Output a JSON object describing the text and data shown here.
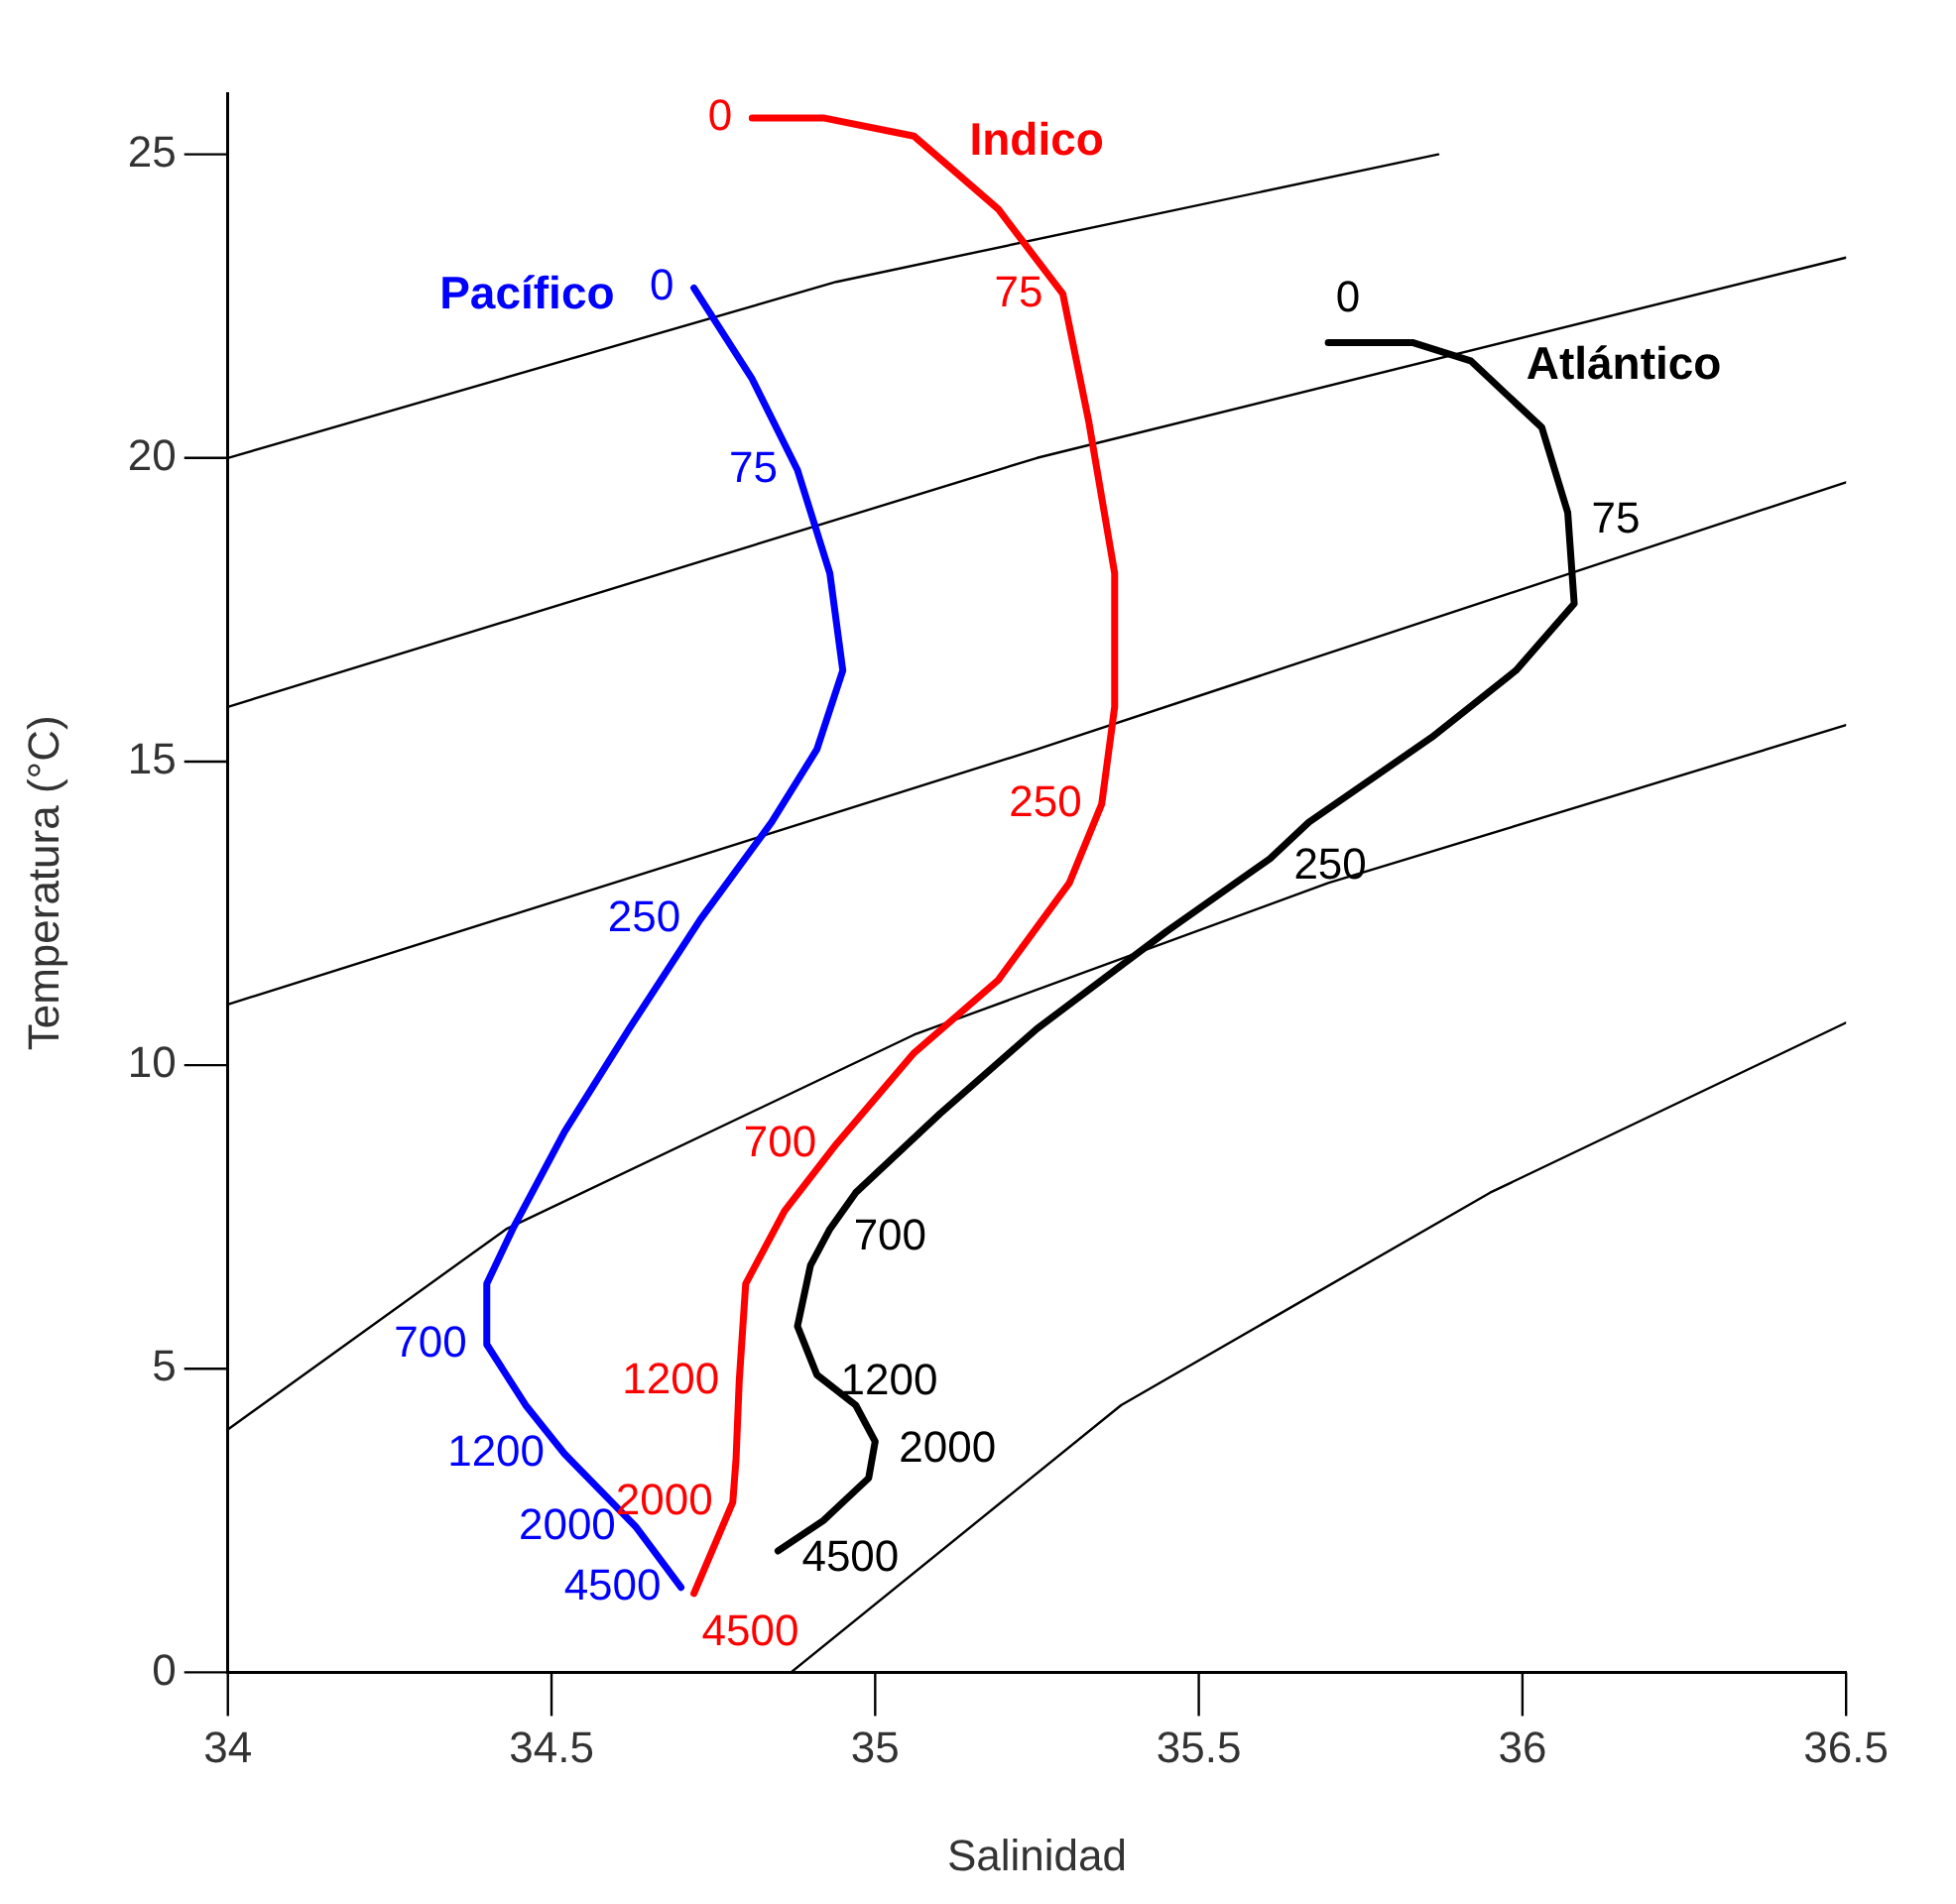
{
  "chart_data": {
    "type": "line",
    "xlabel": "Salinidad",
    "ylabel": "Temperatura (°C)",
    "xlim": [
      34,
      36.5
    ],
    "ylim": [
      0,
      26
    ],
    "xticks": [
      34,
      34.5,
      35,
      35.5,
      36,
      36.5
    ],
    "yticks": [
      0,
      5,
      10,
      15,
      20,
      25
    ],
    "grid": false,
    "legend": false,
    "marker": "none",
    "line_style": "solid",
    "series": [
      {
        "name": "Pacífico",
        "color": "#0000ff",
        "x": [
          34.72,
          34.81,
          34.88,
          34.93,
          34.95,
          34.91,
          34.84,
          34.73,
          34.62,
          34.52,
          34.44,
          34.4,
          34.4,
          34.46,
          34.52,
          34.63,
          34.7
        ],
        "values": [
          22.8,
          21.3,
          19.8,
          18.1,
          16.5,
          15.2,
          14,
          12.4,
          10.6,
          8.9,
          7.3,
          6.4,
          5.4,
          4.4,
          3.6,
          2.4,
          1.4
        ]
      },
      {
        "name": "Indico",
        "color": "#ff0000",
        "x": [
          34.81,
          34.92,
          35.06,
          35.19,
          35.29,
          35.33,
          35.37,
          35.37,
          35.35,
          35.3,
          35.19,
          35.06,
          34.94,
          34.86,
          34.8,
          34.79,
          34.785,
          34.78,
          34.72
        ],
        "values": [
          25.6,
          25.6,
          25.3,
          24.1,
          22.7,
          20.6,
          18.1,
          15.9,
          14.3,
          13,
          11.4,
          10.2,
          8.7,
          7.6,
          6.4,
          4.8,
          3.5,
          2.8,
          1.3
        ]
      },
      {
        "name": "Atlántico",
        "color": "#000000",
        "x": [
          35.7,
          35.83,
          35.92,
          36.03,
          36.07,
          36.08,
          35.99,
          35.86,
          35.67,
          35.61,
          35.45,
          35.25,
          35.1,
          34.97,
          34.93,
          34.9,
          34.88,
          34.91,
          34.97,
          35,
          34.99,
          34.92,
          34.85
        ],
        "values": [
          21.9,
          21.9,
          21.6,
          20.5,
          19.1,
          17.6,
          16.5,
          15.4,
          14,
          13.4,
          12.2,
          10.6,
          9.2,
          7.9,
          7.3,
          6.7,
          5.7,
          4.9,
          4.4,
          3.8,
          3.2,
          2.5,
          2
        ]
      },
      {
        "color": "#000000",
        "x": [
          34,
          34.94,
          35.87
        ],
        "values": [
          20,
          22.9,
          25
        ]
      },
      {
        "color": "#000000",
        "x": [
          34,
          35.25,
          36.5
        ],
        "values": [
          15.9,
          20,
          23.3
        ]
      },
      {
        "color": "#000000",
        "x": [
          34,
          35.25,
          36.5
        ],
        "values": [
          11,
          15.2,
          19.6
        ]
      },
      {
        "color": "#000000",
        "x": [
          34,
          34.43,
          35.06,
          35.7,
          36.5
        ],
        "values": [
          4,
          7.3,
          10.5,
          13,
          15.6
        ]
      },
      {
        "color": "#000000",
        "x": [
          34.87,
          35.38,
          35.95,
          36.5
        ],
        "values": [
          0,
          4.4,
          7.9,
          10.7
        ]
      }
    ],
    "annotations": [
      {
        "text": "0",
        "x": 34.72,
        "y": 22.8
      },
      {
        "text": "75",
        "x": 34.88,
        "y": 19.8
      },
      {
        "text": "250",
        "x": 34.73,
        "y": 12.4
      },
      {
        "text": "700",
        "x": 34.4,
        "y": 5.4
      },
      {
        "text": "1200",
        "x": 34.52,
        "y": 3.6
      },
      {
        "text": "2000",
        "x": 34.63,
        "y": 2.4
      },
      {
        "text": "4500",
        "x": 34.7,
        "y": 1.4
      },
      {
        "text": "0",
        "x": 34.81,
        "y": 25.6
      },
      {
        "text": "75",
        "x": 35.29,
        "y": 22.7
      },
      {
        "text": "250",
        "x": 35.35,
        "y": 14.3
      },
      {
        "text": "700",
        "x": 34.94,
        "y": 8.7
      },
      {
        "text": "1200",
        "x": 34.79,
        "y": 4.8
      },
      {
        "text": "2000",
        "x": 34.78,
        "y": 2.8
      },
      {
        "text": "4500",
        "x": 34.72,
        "y": 1.3
      },
      {
        "text": "0",
        "x": 35.7,
        "y": 21.9
      },
      {
        "text": "75",
        "x": 36.07,
        "y": 19.1
      },
      {
        "text": "250",
        "x": 35.61,
        "y": 13.4
      },
      {
        "text": "700",
        "x": 34.93,
        "y": 7.3
      },
      {
        "text": "1200",
        "x": 34.91,
        "y": 4.9
      },
      {
        "text": "2000",
        "x": 35,
        "y": 3.8
      },
      {
        "text": "4500",
        "x": 34.85,
        "y": 2
      }
    ]
  }
}
